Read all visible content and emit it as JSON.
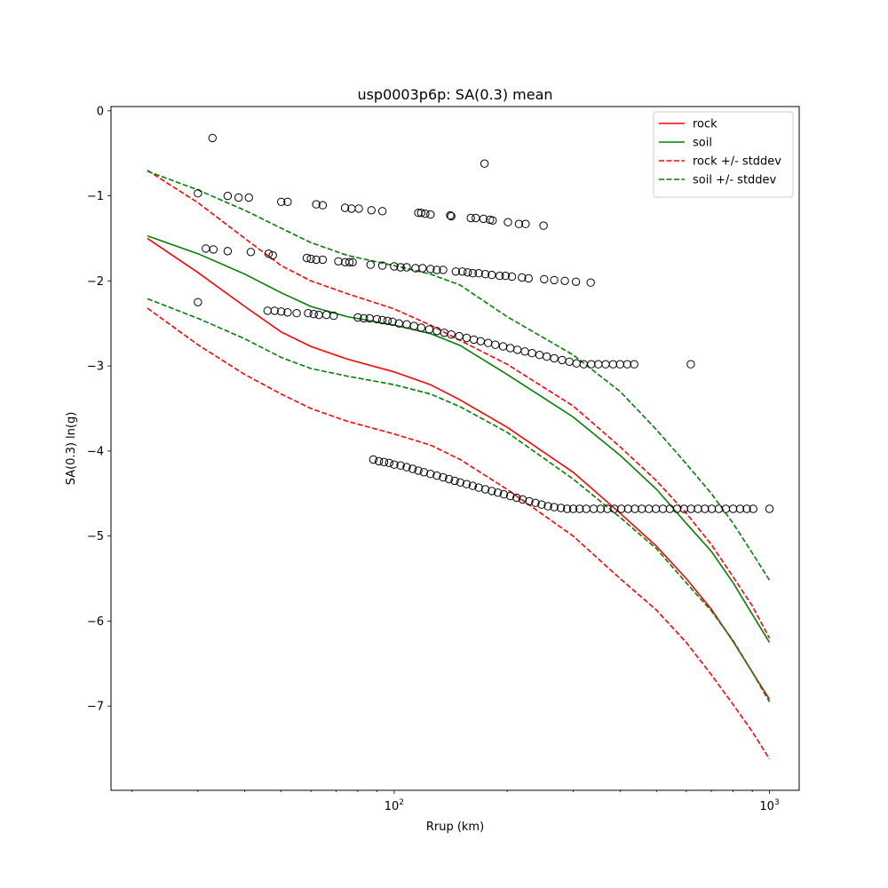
{
  "chart_data": {
    "type": "scatter",
    "title": "usp0003p6p: SA(0.3) mean",
    "xlabel": "Rrup (km)",
    "ylabel": "SA(0.3) ln(g)",
    "xscale": "log",
    "xlim": [
      17.6,
      1200
    ],
    "ylim": [
      -7.99,
      0.05
    ],
    "x_ticks": [
      {
        "value": 100,
        "base": "10",
        "exp": "2"
      },
      {
        "value": 1000,
        "base": "10",
        "exp": "3"
      }
    ],
    "y_ticks": [
      {
        "value": 0,
        "label": "0"
      },
      {
        "value": -1,
        "label": "−1"
      },
      {
        "value": -2,
        "label": "−2"
      },
      {
        "value": -3,
        "label": "−3"
      },
      {
        "value": -4,
        "label": "−4"
      },
      {
        "value": -5,
        "label": "−5"
      },
      {
        "value": -6,
        "label": "−6"
      },
      {
        "value": -7,
        "label": "−7"
      }
    ],
    "legend_position": "top-right",
    "series": [
      {
        "name": "rock",
        "color": "#ff0000",
        "dash": "solid",
        "points": [
          [
            22,
            -1.5
          ],
          [
            30,
            -1.9
          ],
          [
            40,
            -2.3
          ],
          [
            50,
            -2.6
          ],
          [
            60,
            -2.77
          ],
          [
            75,
            -2.92
          ],
          [
            100,
            -3.07
          ],
          [
            125,
            -3.22
          ],
          [
            150,
            -3.4
          ],
          [
            200,
            -3.72
          ],
          [
            300,
            -4.25
          ],
          [
            400,
            -4.73
          ],
          [
            500,
            -5.12
          ],
          [
            600,
            -5.5
          ],
          [
            700,
            -5.86
          ],
          [
            800,
            -6.24
          ],
          [
            900,
            -6.6
          ],
          [
            1000,
            -6.92
          ]
        ]
      },
      {
        "name": "soil",
        "color": "#008000",
        "dash": "solid",
        "points": [
          [
            22,
            -1.47
          ],
          [
            30,
            -1.68
          ],
          [
            40,
            -1.92
          ],
          [
            50,
            -2.14
          ],
          [
            60,
            -2.3
          ],
          [
            75,
            -2.42
          ],
          [
            100,
            -2.52
          ],
          [
            125,
            -2.62
          ],
          [
            150,
            -2.76
          ],
          [
            200,
            -3.1
          ],
          [
            300,
            -3.6
          ],
          [
            400,
            -4.05
          ],
          [
            500,
            -4.45
          ],
          [
            600,
            -4.85
          ],
          [
            700,
            -5.18
          ],
          [
            800,
            -5.55
          ],
          [
            900,
            -5.92
          ],
          [
            1000,
            -6.25
          ]
        ]
      },
      {
        "name": "rock +/- stddev",
        "color": "#ff0000",
        "dash": "dashed",
        "points": [
          [
            22,
            -0.7
          ],
          [
            30,
            -1.08
          ],
          [
            40,
            -1.5
          ],
          [
            50,
            -1.82
          ],
          [
            60,
            -2.0
          ],
          [
            75,
            -2.15
          ],
          [
            100,
            -2.33
          ],
          [
            125,
            -2.52
          ],
          [
            150,
            -2.7
          ],
          [
            200,
            -2.98
          ],
          [
            300,
            -3.47
          ],
          [
            400,
            -3.95
          ],
          [
            500,
            -4.35
          ],
          [
            600,
            -4.73
          ],
          [
            700,
            -5.1
          ],
          [
            800,
            -5.48
          ],
          [
            900,
            -5.82
          ],
          [
            1000,
            -6.2
          ]
        ]
      },
      {
        "name": "rock +/- stddev (lower)",
        "color": "#ff0000",
        "dash": "dashed",
        "legend": false,
        "points": [
          [
            22,
            -2.32
          ],
          [
            30,
            -2.75
          ],
          [
            40,
            -3.1
          ],
          [
            50,
            -3.33
          ],
          [
            60,
            -3.5
          ],
          [
            75,
            -3.65
          ],
          [
            100,
            -3.8
          ],
          [
            125,
            -3.93
          ],
          [
            150,
            -4.1
          ],
          [
            200,
            -4.45
          ],
          [
            300,
            -5.0
          ],
          [
            400,
            -5.5
          ],
          [
            500,
            -5.87
          ],
          [
            600,
            -6.25
          ],
          [
            700,
            -6.63
          ],
          [
            800,
            -6.98
          ],
          [
            900,
            -7.3
          ],
          [
            1000,
            -7.62
          ]
        ]
      },
      {
        "name": "soil +/- stddev",
        "color": "#008000",
        "dash": "dashed",
        "points": [
          [
            22,
            -0.71
          ],
          [
            30,
            -0.93
          ],
          [
            40,
            -1.17
          ],
          [
            50,
            -1.38
          ],
          [
            60,
            -1.55
          ],
          [
            75,
            -1.7
          ],
          [
            100,
            -1.82
          ],
          [
            125,
            -1.92
          ],
          [
            150,
            -2.05
          ],
          [
            200,
            -2.42
          ],
          [
            300,
            -2.87
          ],
          [
            400,
            -3.3
          ],
          [
            500,
            -3.75
          ],
          [
            600,
            -4.15
          ],
          [
            700,
            -4.5
          ],
          [
            800,
            -4.85
          ],
          [
            900,
            -5.2
          ],
          [
            1000,
            -5.52
          ]
        ]
      },
      {
        "name": "soil +/- stddev (lower)",
        "color": "#008000",
        "dash": "dashed",
        "legend": false,
        "points": [
          [
            22,
            -2.21
          ],
          [
            30,
            -2.44
          ],
          [
            40,
            -2.68
          ],
          [
            50,
            -2.9
          ],
          [
            60,
            -3.03
          ],
          [
            75,
            -3.12
          ],
          [
            100,
            -3.22
          ],
          [
            125,
            -3.33
          ],
          [
            150,
            -3.48
          ],
          [
            200,
            -3.78
          ],
          [
            300,
            -4.33
          ],
          [
            400,
            -4.78
          ],
          [
            500,
            -5.15
          ],
          [
            600,
            -5.55
          ],
          [
            700,
            -5.88
          ],
          [
            800,
            -6.23
          ],
          [
            900,
            -6.6
          ],
          [
            1000,
            -6.95
          ]
        ]
      }
    ],
    "observations": {
      "marker": "open-circle",
      "color": "#000000",
      "points": [
        [
          32.8,
          -0.32
        ],
        [
          174,
          -0.62
        ],
        [
          617,
          -2.98
        ],
        [
          1000,
          -4.68
        ],
        [
          30,
          -2.25
        ],
        [
          30,
          -0.97
        ],
        [
          36,
          -1.0
        ],
        [
          38.5,
          -1.02
        ],
        [
          41,
          -1.02
        ],
        [
          50,
          -1.07
        ],
        [
          52,
          -1.07
        ],
        [
          62,
          -1.1
        ],
        [
          64.5,
          -1.11
        ],
        [
          74,
          -1.14
        ],
        [
          77,
          -1.15
        ],
        [
          80.5,
          -1.15
        ],
        [
          87,
          -1.17
        ],
        [
          93,
          -1.18
        ],
        [
          116,
          -1.2
        ],
        [
          118,
          -1.2
        ],
        [
          121,
          -1.21
        ],
        [
          125,
          -1.22
        ],
        [
          141,
          -1.23
        ],
        [
          142,
          -1.24
        ],
        [
          160,
          -1.26
        ],
        [
          165,
          -1.26
        ],
        [
          173,
          -1.27
        ],
        [
          180,
          -1.28
        ],
        [
          183,
          -1.29
        ],
        [
          201,
          -1.31
        ],
        [
          215,
          -1.33
        ],
        [
          224,
          -1.33
        ],
        [
          250,
          -1.35
        ],
        [
          31.5,
          -1.62
        ],
        [
          33,
          -1.63
        ],
        [
          36,
          -1.65
        ],
        [
          41.5,
          -1.66
        ],
        [
          46.3,
          -1.68
        ],
        [
          47.5,
          -1.7
        ],
        [
          58.5,
          -1.73
        ],
        [
          60,
          -1.74
        ],
        [
          62,
          -1.75
        ],
        [
          64.5,
          -1.75
        ],
        [
          71,
          -1.77
        ],
        [
          74,
          -1.78
        ],
        [
          76,
          -1.78
        ],
        [
          77.5,
          -1.78
        ],
        [
          86.5,
          -1.81
        ],
        [
          93,
          -1.82
        ],
        [
          100,
          -1.83
        ],
        [
          104,
          -1.84
        ],
        [
          108,
          -1.84
        ],
        [
          114,
          -1.85
        ],
        [
          119,
          -1.85
        ],
        [
          125,
          -1.86
        ],
        [
          130,
          -1.87
        ],
        [
          135,
          -1.87
        ],
        [
          146,
          -1.89
        ],
        [
          152,
          -1.89
        ],
        [
          157,
          -1.9
        ],
        [
          162,
          -1.91
        ],
        [
          168,
          -1.91
        ],
        [
          175,
          -1.92
        ],
        [
          182,
          -1.93
        ],
        [
          191,
          -1.94
        ],
        [
          198,
          -1.94
        ],
        [
          206,
          -1.95
        ],
        [
          219,
          -1.96
        ],
        [
          228,
          -1.97
        ],
        [
          251,
          -1.98
        ],
        [
          267,
          -1.99
        ],
        [
          285,
          -2.0
        ],
        [
          305,
          -2.01
        ],
        [
          334,
          -2.02
        ],
        [
          46,
          -2.35
        ],
        [
          48,
          -2.35
        ],
        [
          50,
          -2.36
        ],
        [
          52,
          -2.37
        ],
        [
          55,
          -2.38
        ],
        [
          59,
          -2.38
        ],
        [
          61,
          -2.39
        ],
        [
          63,
          -2.4
        ],
        [
          66,
          -2.4
        ],
        [
          69,
          -2.41
        ],
        [
          80,
          -2.43
        ],
        [
          83,
          -2.44
        ],
        [
          86,
          -2.44
        ],
        [
          90,
          -2.45
        ],
        [
          93,
          -2.46
        ],
        [
          96,
          -2.47
        ],
        [
          99,
          -2.48
        ],
        [
          103,
          -2.5
        ],
        [
          108,
          -2.51
        ],
        [
          113,
          -2.53
        ],
        [
          118,
          -2.55
        ],
        [
          124,
          -2.57
        ],
        [
          130,
          -2.59
        ],
        [
          136,
          -2.61
        ],
        [
          142,
          -2.63
        ],
        [
          149,
          -2.65
        ],
        [
          156,
          -2.67
        ],
        [
          163,
          -2.69
        ],
        [
          170,
          -2.71
        ],
        [
          178,
          -2.73
        ],
        [
          186,
          -2.75
        ],
        [
          195,
          -2.77
        ],
        [
          204,
          -2.79
        ],
        [
          213,
          -2.81
        ],
        [
          223,
          -2.83
        ],
        [
          233,
          -2.85
        ],
        [
          244,
          -2.87
        ],
        [
          255,
          -2.89
        ],
        [
          267,
          -2.91
        ],
        [
          280,
          -2.93
        ],
        [
          293,
          -2.95
        ],
        [
          306,
          -2.97
        ],
        [
          320,
          -2.98
        ],
        [
          335,
          -2.98
        ],
        [
          350,
          -2.98
        ],
        [
          366,
          -2.98
        ],
        [
          383,
          -2.98
        ],
        [
          400,
          -2.98
        ],
        [
          418,
          -2.98
        ],
        [
          436,
          -2.98
        ],
        [
          88,
          -4.1
        ],
        [
          91,
          -4.12
        ],
        [
          94,
          -4.13
        ],
        [
          97,
          -4.14
        ],
        [
          100,
          -4.16
        ],
        [
          104,
          -4.17
        ],
        [
          108,
          -4.19
        ],
        [
          112,
          -4.21
        ],
        [
          116,
          -4.23
        ],
        [
          120,
          -4.25
        ],
        [
          125,
          -4.27
        ],
        [
          130,
          -4.29
        ],
        [
          135,
          -4.31
        ],
        [
          140,
          -4.33
        ],
        [
          145,
          -4.35
        ],
        [
          150,
          -4.37
        ],
        [
          156,
          -4.39
        ],
        [
          162,
          -4.41
        ],
        [
          168,
          -4.43
        ],
        [
          175,
          -4.45
        ],
        [
          182,
          -4.47
        ],
        [
          189,
          -4.49
        ],
        [
          196,
          -4.51
        ],
        [
          204,
          -4.53
        ],
        [
          212,
          -4.55
        ],
        [
          220,
          -4.57
        ],
        [
          229,
          -4.59
        ],
        [
          238,
          -4.61
        ],
        [
          247,
          -4.63
        ],
        [
          257,
          -4.65
        ],
        [
          267,
          -4.66
        ],
        [
          278,
          -4.67
        ],
        [
          289,
          -4.68
        ],
        [
          300,
          -4.68
        ],
        [
          312,
          -4.68
        ],
        [
          325,
          -4.68
        ],
        [
          340,
          -4.68
        ],
        [
          355,
          -4.68
        ],
        [
          370,
          -4.68
        ],
        [
          386,
          -4.68
        ],
        [
          403,
          -4.68
        ],
        [
          420,
          -4.68
        ],
        [
          438,
          -4.68
        ],
        [
          457,
          -4.68
        ],
        [
          477,
          -4.68
        ],
        [
          498,
          -4.68
        ],
        [
          520,
          -4.68
        ],
        [
          543,
          -4.68
        ],
        [
          567,
          -4.68
        ],
        [
          592,
          -4.68
        ],
        [
          618,
          -4.68
        ],
        [
          645,
          -4.68
        ],
        [
          673,
          -4.68
        ],
        [
          702,
          -4.68
        ],
        [
          733,
          -4.68
        ],
        [
          765,
          -4.68
        ],
        [
          800,
          -4.68
        ],
        [
          835,
          -4.68
        ],
        [
          870,
          -4.68
        ],
        [
          905,
          -4.68
        ]
      ]
    }
  }
}
